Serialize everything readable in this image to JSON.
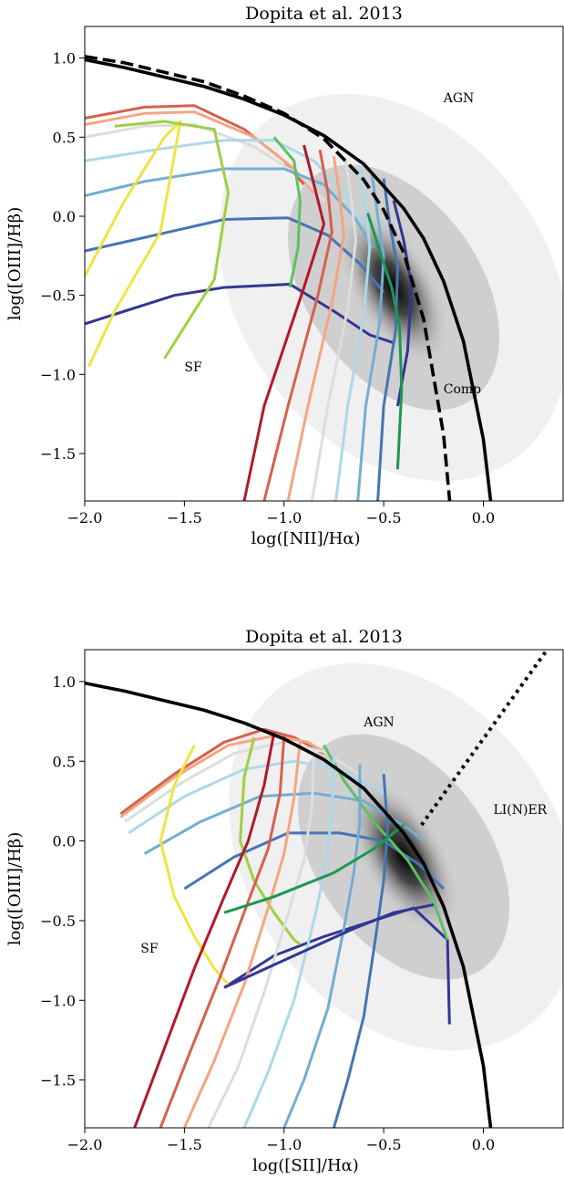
{
  "chart_data": [
    {
      "type": "line",
      "title": "Dopita et al. 2013",
      "xlabel": "log([NII]/Hα)",
      "ylabel": "log([OIII]/Hβ)",
      "xlim": [
        -2.0,
        0.4
      ],
      "ylim": [
        -1.8,
        1.2
      ],
      "xticks": [
        -2.0,
        -1.5,
        -1.0,
        -0.5,
        0.0
      ],
      "xtick_labels": [
        "−2.0",
        "−1.5",
        "−1.0",
        "−0.5",
        "0.0"
      ],
      "yticks": [
        -1.5,
        -1.0,
        -0.5,
        0.0,
        0.5,
        1.0
      ],
      "ytick_labels": [
        "−1.5",
        "−1.0",
        "−0.5",
        "0.0",
        "0.5",
        "1.0"
      ],
      "grid": false,
      "annotations": [
        {
          "text": "AGN",
          "x": -0.2,
          "y": 0.72
        },
        {
          "text": "SF",
          "x": -1.5,
          "y": -0.98
        },
        {
          "text": "Comp",
          "x": -0.2,
          "y": -1.12
        }
      ],
      "demarcation_lines": [
        {
          "name": "Kewley 2001 maximum starburst",
          "style": "solid",
          "x": [
            -2.0,
            -1.8,
            -1.6,
            -1.4,
            -1.2,
            -1.0,
            -0.8,
            -0.6,
            -0.4,
            -0.3,
            -0.2,
            -0.1,
            0.0,
            0.05,
            0.08
          ],
          "y": [
            0.99,
            0.94,
            0.88,
            0.82,
            0.74,
            0.64,
            0.51,
            0.33,
            0.05,
            -0.14,
            -0.41,
            -0.79,
            -1.41,
            -1.94,
            -2.48
          ]
        },
        {
          "name": "Kauffmann 2003 composite",
          "style": "dashed",
          "x": [
            -2.0,
            -1.8,
            -1.6,
            -1.4,
            -1.2,
            -1.0,
            -0.8,
            -0.6,
            -0.5,
            -0.4,
            -0.3,
            -0.2,
            -0.15
          ],
          "y": [
            1.01,
            0.97,
            0.91,
            0.85,
            0.76,
            0.65,
            0.49,
            0.23,
            0.04,
            -0.23,
            -0.65,
            -1.38,
            -2.06
          ]
        }
      ],
      "density": {
        "peak_x": -0.45,
        "peak_y": -0.45
      },
      "grid_lines_metallicity": [
        {
          "color": "#f0e442",
          "x": [
            -2.0,
            -1.8,
            -1.6,
            -1.52,
            -1.62,
            -1.85,
            -1.98
          ],
          "y": [
            -0.38,
            0.1,
            0.5,
            0.6,
            -0.1,
            -0.6,
            -0.95
          ]
        },
        {
          "color": "#9fd040",
          "x": [
            -1.85,
            -1.6,
            -1.35,
            -1.28,
            -1.35,
            -1.6
          ],
          "y": [
            0.57,
            0.6,
            0.55,
            0.15,
            -0.4,
            -0.9
          ]
        },
        {
          "color": "#5cc160",
          "x": [
            -1.05,
            -0.95,
            -0.92,
            -0.93,
            -0.97
          ],
          "y": [
            0.5,
            0.35,
            0.1,
            -0.2,
            -0.45
          ]
        },
        {
          "color": "#b2182b",
          "x": [
            -0.9,
            -0.85,
            -0.8,
            -0.9,
            -1.1,
            -1.2
          ],
          "y": [
            0.45,
            0.2,
            -0.05,
            -0.45,
            -1.2,
            -1.8
          ]
        },
        {
          "color": "#d6604d",
          "x": [
            -0.82,
            -0.78,
            -0.76,
            -0.83,
            -0.98,
            -1.1
          ],
          "y": [
            0.42,
            0.15,
            -0.1,
            -0.5,
            -1.2,
            -1.8
          ]
        },
        {
          "color": "#f4a582",
          "x": [
            -0.75,
            -0.72,
            -0.7,
            -0.76,
            -0.88,
            -0.98
          ],
          "y": [
            0.38,
            0.12,
            -0.12,
            -0.55,
            -1.2,
            -1.8
          ]
        },
        {
          "color": "#dddddd",
          "x": [
            -0.69,
            -0.66,
            -0.64,
            -0.68,
            -0.78,
            -0.86
          ],
          "y": [
            0.35,
            0.08,
            -0.15,
            -0.58,
            -1.2,
            -1.8
          ]
        },
        {
          "color": "#abd9e9",
          "x": [
            -0.62,
            -0.59,
            -0.57,
            -0.6,
            -0.68,
            -0.74
          ],
          "y": [
            0.32,
            0.05,
            -0.2,
            -0.62,
            -1.2,
            -1.8
          ]
        },
        {
          "color": "#74add1",
          "x": [
            -0.56,
            -0.53,
            -0.5,
            -0.52,
            -0.59,
            -0.63
          ],
          "y": [
            0.28,
            0.0,
            -0.25,
            -0.67,
            -1.2,
            -1.8
          ]
        },
        {
          "color": "#4575b4",
          "x": [
            -0.5,
            -0.47,
            -0.43,
            -0.44,
            -0.5,
            -0.53
          ],
          "y": [
            0.24,
            -0.05,
            -0.32,
            -0.72,
            -1.2,
            -1.8
          ]
        },
        {
          "color": "#313695",
          "x": [
            -0.45,
            -0.4,
            -0.36,
            -0.38,
            -0.43
          ],
          "y": [
            0.1,
            -0.15,
            -0.45,
            -0.85,
            -1.2
          ]
        },
        {
          "color": "#1a9850",
          "x": [
            -0.58,
            -0.52,
            -0.46,
            -0.42,
            -0.41,
            -0.43
          ],
          "y": [
            0.02,
            -0.22,
            -0.45,
            -0.7,
            -1.1,
            -1.6
          ]
        }
      ],
      "grid_lines_ionisation": [
        {
          "color": "#d6604d",
          "x": [
            -2.0,
            -1.7,
            -1.45,
            -1.2,
            -1.0,
            -0.9
          ],
          "y": [
            0.62,
            0.69,
            0.7,
            0.55,
            0.35,
            0.2
          ]
        },
        {
          "color": "#f4a582",
          "x": [
            -2.0,
            -1.7,
            -1.45,
            -1.15,
            -0.95,
            -0.85
          ],
          "y": [
            0.58,
            0.65,
            0.66,
            0.5,
            0.3,
            0.15
          ]
        },
        {
          "color": "#dddddd",
          "x": [
            -2.0,
            -1.7,
            -1.45,
            -1.15,
            -0.9,
            -0.8
          ],
          "y": [
            0.5,
            0.57,
            0.58,
            0.44,
            0.24,
            0.1
          ]
        },
        {
          "color": "#abd9e9",
          "x": [
            -2.0,
            -1.6,
            -1.3,
            -1.05,
            -0.85,
            -0.7,
            -0.6
          ],
          "y": [
            0.35,
            0.43,
            0.48,
            0.48,
            0.35,
            0.15,
            -0.05
          ]
        },
        {
          "color": "#74add1",
          "x": [
            -2.0,
            -1.7,
            -1.3,
            -1.0,
            -0.8,
            -0.65,
            -0.55
          ],
          "y": [
            0.13,
            0.22,
            0.3,
            0.3,
            0.2,
            0.0,
            -0.2
          ]
        },
        {
          "color": "#4575b4",
          "x": [
            -2.0,
            -1.65,
            -1.3,
            -0.98,
            -0.78,
            -0.62,
            -0.5
          ],
          "y": [
            -0.22,
            -0.12,
            -0.02,
            -0.01,
            -0.12,
            -0.3,
            -0.48
          ]
        },
        {
          "color": "#313695",
          "x": [
            -2.0,
            -1.55,
            -1.3,
            -0.97,
            -0.75,
            -0.57,
            -0.45
          ],
          "y": [
            -0.68,
            -0.5,
            -0.45,
            -0.43,
            -0.6,
            -0.75,
            -0.8
          ]
        }
      ]
    },
    {
      "type": "line",
      "title": "Dopita et al. 2013",
      "xlabel": "log([SII]/Hα)",
      "ylabel": "log([OIII]/Hβ)",
      "xlim": [
        -2.0,
        0.4
      ],
      "ylim": [
        -1.8,
        1.2
      ],
      "xticks": [
        -2.0,
        -1.5,
        -1.0,
        -0.5,
        0.0
      ],
      "xtick_labels": [
        "−2.0",
        "−1.5",
        "−1.0",
        "−0.5",
        "0.0"
      ],
      "yticks": [
        -1.5,
        -1.0,
        -0.5,
        0.0,
        0.5,
        1.0
      ],
      "ytick_labels": [
        "−1.5",
        "−1.0",
        "−0.5",
        "0.0",
        "0.5",
        "1.0"
      ],
      "grid": false,
      "annotations": [
        {
          "text": "AGN",
          "x": -0.6,
          "y": 0.72
        },
        {
          "text": "SF",
          "x": -1.72,
          "y": -0.7
        },
        {
          "text": "LI(N)ER",
          "x": 0.05,
          "y": 0.17
        }
      ],
      "demarcation_lines": [
        {
          "name": "Kewley 2001 maximum starburst",
          "style": "solid",
          "x": [
            -2.0,
            -1.8,
            -1.6,
            -1.4,
            -1.2,
            -1.0,
            -0.8,
            -0.6,
            -0.4,
            -0.3,
            -0.2,
            -0.1,
            0.0,
            0.05,
            0.08
          ],
          "y": [
            0.99,
            0.94,
            0.88,
            0.82,
            0.74,
            0.64,
            0.51,
            0.33,
            0.05,
            -0.14,
            -0.41,
            -0.79,
            -1.41,
            -1.94,
            -2.48
          ]
        },
        {
          "name": "Kewley 2006 Seyfert/LINER",
          "style": "dotted",
          "x": [
            -0.31,
            0.32
          ],
          "y": [
            0.1,
            1.2
          ]
        }
      ],
      "density": {
        "peak_x": -0.4,
        "peak_y": -0.1
      },
      "grid_lines_metallicity": [
        {
          "color": "#f0e442",
          "x": [
            -1.45,
            -1.55,
            -1.62,
            -1.55,
            -1.45,
            -1.35,
            -1.28
          ],
          "y": [
            0.6,
            0.35,
            0.0,
            -0.35,
            -0.6,
            -0.8,
            -0.9
          ]
        },
        {
          "color": "#9fd040",
          "x": [
            -1.15,
            -1.2,
            -1.22,
            -1.15,
            -1.05,
            -0.95,
            -0.92
          ],
          "y": [
            0.65,
            0.4,
            0.0,
            -0.25,
            -0.45,
            -0.62,
            -0.65
          ]
        },
        {
          "color": "#5cc160",
          "x": [
            -0.8,
            -0.7,
            -0.55,
            -0.38,
            -0.25,
            -0.18
          ],
          "y": [
            0.6,
            0.38,
            0.12,
            -0.12,
            -0.38,
            -0.62
          ]
        },
        {
          "color": "#b2182b",
          "x": [
            -1.05,
            -1.1,
            -1.18,
            -1.3,
            -1.45,
            -1.6,
            -1.75
          ],
          "y": [
            0.68,
            0.35,
            0.0,
            -0.35,
            -0.8,
            -1.3,
            -1.8
          ]
        },
        {
          "color": "#d6604d",
          "x": [
            -1.0,
            -1.02,
            -1.08,
            -1.18,
            -1.32,
            -1.48,
            -1.62
          ],
          "y": [
            0.66,
            0.3,
            -0.05,
            -0.38,
            -0.85,
            -1.35,
            -1.8
          ]
        },
        {
          "color": "#f4a582",
          "x": [
            -0.92,
            -0.95,
            -1.0,
            -1.08,
            -1.2,
            -1.35,
            -1.5
          ],
          "y": [
            0.62,
            0.27,
            -0.08,
            -0.42,
            -0.9,
            -1.38,
            -1.8
          ]
        },
        {
          "color": "#dddddd",
          "x": [
            -0.85,
            -0.86,
            -0.9,
            -0.98,
            -1.1,
            -1.23,
            -1.38
          ],
          "y": [
            0.58,
            0.22,
            -0.12,
            -0.46,
            -0.95,
            -1.42,
            -1.8
          ]
        },
        {
          "color": "#abd9e9",
          "x": [
            -0.75,
            -0.76,
            -0.79,
            -0.85,
            -0.95,
            -1.08,
            -1.2
          ],
          "y": [
            0.54,
            0.18,
            -0.15,
            -0.5,
            -1.0,
            -1.45,
            -1.8
          ]
        },
        {
          "color": "#74add1",
          "x": [
            -0.62,
            -0.62,
            -0.65,
            -0.7,
            -0.78,
            -0.9,
            -1.0
          ],
          "y": [
            0.48,
            0.12,
            -0.2,
            -0.55,
            -1.05,
            -1.5,
            -1.8
          ]
        },
        {
          "color": "#4575b4",
          "x": [
            -0.5,
            -0.48,
            -0.5,
            -0.54,
            -0.6,
            -0.68,
            -0.75
          ],
          "y": [
            0.42,
            0.08,
            -0.25,
            -0.6,
            -1.1,
            -1.5,
            -1.8
          ]
        },
        {
          "color": "#1a9850",
          "x": [
            -1.3,
            -1.05,
            -0.75,
            -0.55,
            -0.4
          ],
          "y": [
            -0.45,
            -0.35,
            -0.2,
            -0.05,
            0.1
          ]
        },
        {
          "color": "#313695",
          "x": [
            -1.3,
            -0.95,
            -0.65,
            -0.45,
            -0.25
          ],
          "y": [
            -0.92,
            -0.72,
            -0.55,
            -0.45,
            -0.4
          ]
        }
      ],
      "grid_lines_ionisation": [
        {
          "color": "#d6604d",
          "x": [
            -1.82,
            -1.55,
            -1.3,
            -1.1,
            -0.95,
            -0.8
          ],
          "y": [
            0.17,
            0.42,
            0.62,
            0.7,
            0.65,
            0.55
          ]
        },
        {
          "color": "#f4a582",
          "x": [
            -1.82,
            -1.55,
            -1.28,
            -1.05,
            -0.88,
            -0.7
          ],
          "y": [
            0.15,
            0.4,
            0.6,
            0.66,
            0.62,
            0.48
          ]
        },
        {
          "color": "#dddddd",
          "x": [
            -1.8,
            -1.52,
            -1.25,
            -1.0,
            -0.8,
            -0.6
          ],
          "y": [
            0.12,
            0.36,
            0.55,
            0.62,
            0.56,
            0.4
          ]
        },
        {
          "color": "#abd9e9",
          "x": [
            -1.78,
            -1.5,
            -1.2,
            -0.95,
            -0.72,
            -0.5
          ],
          "y": [
            0.05,
            0.28,
            0.45,
            0.5,
            0.45,
            0.3
          ]
        },
        {
          "color": "#74add1",
          "x": [
            -1.7,
            -1.42,
            -1.12,
            -0.85,
            -0.6,
            -0.38,
            -0.3
          ],
          "y": [
            -0.08,
            0.12,
            0.28,
            0.3,
            0.25,
            0.08,
            0.0
          ]
        },
        {
          "color": "#4575b4",
          "x": [
            -1.5,
            -1.25,
            -0.98,
            -0.72,
            -0.5,
            -0.32,
            -0.2
          ],
          "y": [
            -0.3,
            -0.1,
            0.05,
            0.05,
            0.0,
            -0.15,
            -0.3
          ]
        },
        {
          "color": "#313695",
          "x": [
            -1.3,
            -1.05,
            -0.8,
            -0.55,
            -0.35,
            -0.18,
            -0.17
          ],
          "y": [
            -0.92,
            -0.72,
            -0.6,
            -0.5,
            -0.42,
            -0.62,
            -1.15
          ]
        }
      ]
    }
  ]
}
